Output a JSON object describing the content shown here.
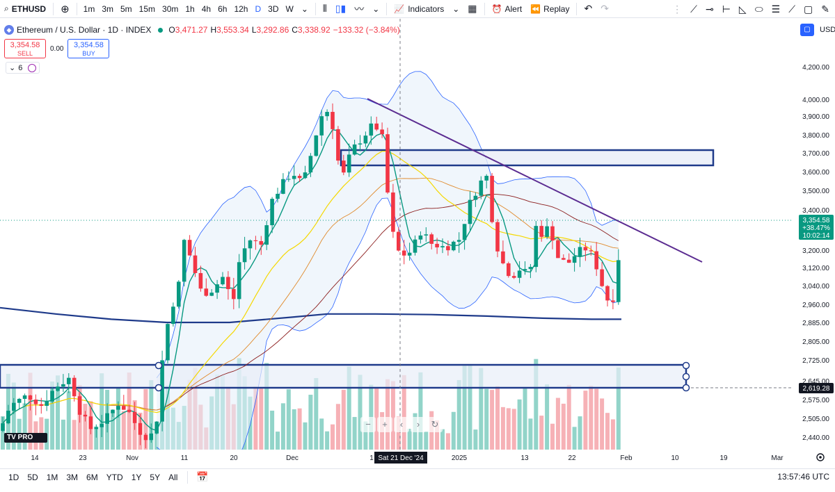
{
  "toolbar": {
    "symbol": "ETHUSD",
    "timeframes": [
      "1m",
      "3m",
      "5m",
      "15m",
      "30m",
      "1h",
      "4h",
      "6h",
      "12h",
      "D",
      "3D",
      "W"
    ],
    "active_timeframe": "D",
    "indicators_label": "Indicators",
    "alert_label": "Alert",
    "replay_label": "Replay"
  },
  "legend": {
    "title": "Ethereum / U.S. Dollar · 1D · INDEX",
    "open_label": "O",
    "open": "3,471.27",
    "high_label": "H",
    "high": "3,553.34",
    "low_label": "L",
    "low": "3,292.86",
    "close_label": "C",
    "close": "3,338.92",
    "change": "−133.32 (−3.84%)"
  },
  "trade": {
    "sell_price": "3,354.58",
    "sell_label": "SELL",
    "spread": "0.00",
    "buy_price": "3,354.58",
    "buy_label": "BUY"
  },
  "indicator_count": "6",
  "scale": {
    "currency": "USD"
  },
  "price_axis": {
    "ticks": [
      "4,200.00",
      "4,000.00",
      "3,900.00",
      "3,800.00",
      "3,700.00",
      "3,600.00",
      "3,500.00",
      "3,400.00",
      "3,280.00",
      "3,200.00",
      "3,120.00",
      "3,040.00",
      "2,960.00",
      "2,885.00",
      "2,805.00",
      "2,725.00",
      "2,645.00",
      "2,575.00",
      "2,505.00",
      "2,440.00"
    ],
    "last_price": "3,354.58",
    "last_change": "+38.47%",
    "countdown": "10:02:14",
    "line_label": "2,619.28"
  },
  "time_axis": {
    "ticks": [
      "14",
      "23",
      "Nov",
      "11",
      "20",
      "Dec",
      "1",
      "2025",
      "13",
      "22",
      "Feb",
      "10",
      "19",
      "Mar"
    ],
    "crosshair_label": "Sat 21 Dec '24"
  },
  "bottom": {
    "ranges": [
      "1D",
      "5D",
      "1M",
      "3M",
      "6M",
      "YTD",
      "1Y",
      "5Y",
      "All"
    ],
    "clock": "13:57:46 UTC"
  },
  "colors": {
    "up": "#089981",
    "down": "#f23645",
    "zone_border": "#1e3a8a",
    "trendline": "#5b2c91",
    "bb_fill": "#e3eefa",
    "bb_line": "#2962ff",
    "ma_long": "#1e3a8a",
    "ma_yellow": "#f5d800",
    "ma_red": "#8b1c1c"
  },
  "logo_text": "TV PRO"
}
